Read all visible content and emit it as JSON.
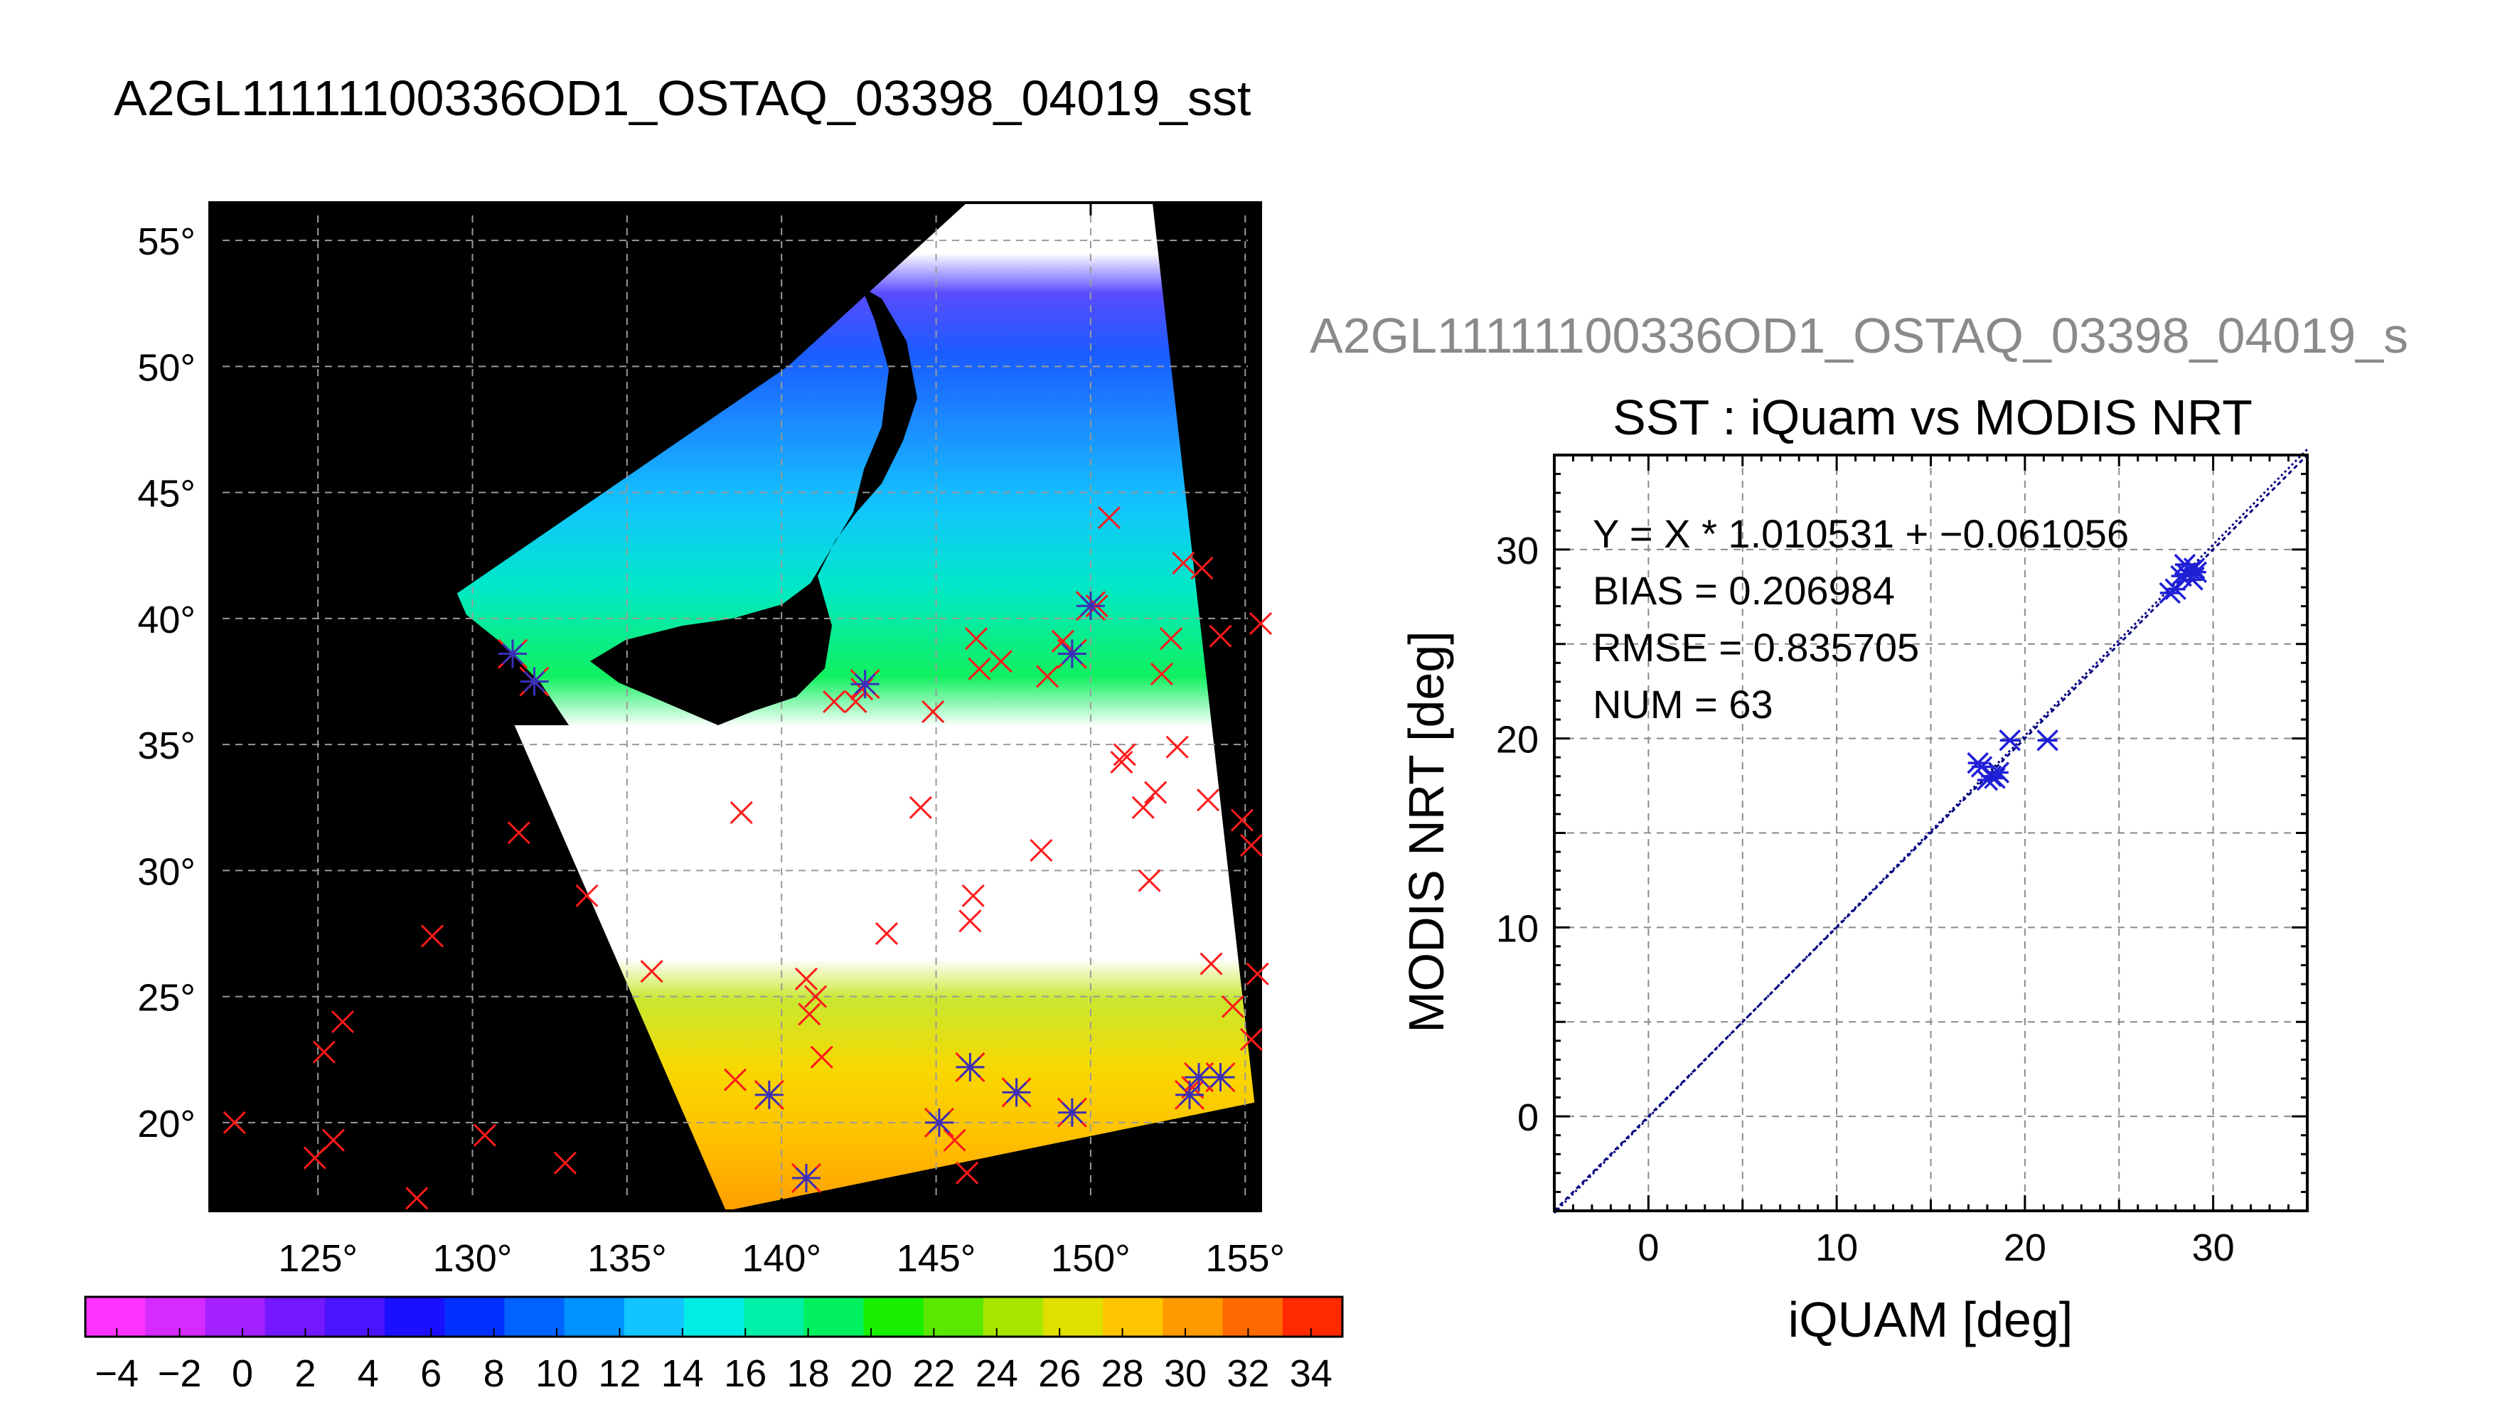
{
  "page_title": "A2GL11111100336OD1_OSTAQ_03398_04019_sst",
  "chart_data": [
    {
      "type": "heatmap",
      "title": "A2GL11111100336OD1_OSTAQ_03398_04019_sst",
      "xlim": [
        121.5,
        155.5
      ],
      "ylim": [
        16.5,
        56.5
      ],
      "x_ticks": [
        "125°",
        "130°",
        "135°",
        "140°",
        "145°",
        "150°",
        "155°"
      ],
      "x_tick_values": [
        125,
        130,
        135,
        140,
        145,
        150,
        155
      ],
      "y_ticks": [
        "20°",
        "25°",
        "30°",
        "35°",
        "40°",
        "45°",
        "50°",
        "55°"
      ],
      "y_tick_values": [
        20,
        25,
        30,
        35,
        40,
        45,
        50,
        55
      ],
      "grid": true,
      "background": "#000000",
      "swath_corners_lonlat": [
        [
          129.5,
          41
        ],
        [
          140.2,
          50
        ],
        [
          146,
          56.5
        ],
        [
          152,
          56.5
        ],
        [
          155.3,
          20.8
        ],
        [
          138.2,
          16.5
        ]
      ],
      "colorbar": {
        "min": -5,
        "max": 35,
        "tick_labels": [
          "−4",
          "−2",
          "0",
          "2",
          "4",
          "6",
          "8",
          "10",
          "12",
          "14",
          "16",
          "18",
          "20",
          "22",
          "24",
          "26",
          "28",
          "30",
          "32",
          "34"
        ],
        "tick_values": [
          -4,
          -2,
          0,
          2,
          4,
          6,
          8,
          10,
          12,
          14,
          16,
          18,
          20,
          22,
          24,
          26,
          28,
          30,
          32,
          34
        ],
        "colors": [
          "#ff33ff",
          "#d62bff",
          "#a520ff",
          "#7419ff",
          "#4a14ff",
          "#1a10ff",
          "#0030ff",
          "#0062ff",
          "#0092ff",
          "#12c4ff",
          "#00ede6",
          "#00f0a8",
          "#00f060",
          "#18f000",
          "#5ae800",
          "#a8e600",
          "#e0e000",
          "#ffc400",
          "#ff9a00",
          "#ff6a00",
          "#ff2a00"
        ]
      },
      "markers_red_x": [
        [
          122.3,
          20
        ],
        [
          124.9,
          18.6
        ],
        [
          125.2,
          22.8
        ],
        [
          125.5,
          19.3
        ],
        [
          125.8,
          24
        ],
        [
          128.2,
          17
        ],
        [
          128.7,
          27.4
        ],
        [
          130.4,
          19.5
        ],
        [
          131.5,
          31.5
        ],
        [
          133,
          18.4
        ],
        [
          133.7,
          29
        ],
        [
          135.8,
          26
        ],
        [
          138.5,
          21.7
        ],
        [
          138.7,
          32.3
        ],
        [
          140.8,
          25.7
        ],
        [
          140.9,
          24.3
        ],
        [
          141.1,
          25
        ],
        [
          141.3,
          22.6
        ],
        [
          141.7,
          36.7
        ],
        [
          142.4,
          36.7
        ],
        [
          142.6,
          37.2
        ],
        [
          143.4,
          27.5
        ],
        [
          144.5,
          32.5
        ],
        [
          144.9,
          36.3
        ],
        [
          145.6,
          19.3
        ],
        [
          146,
          18
        ],
        [
          146.1,
          28
        ],
        [
          146.2,
          29
        ],
        [
          146.3,
          39.2
        ],
        [
          146.4,
          38
        ],
        [
          147.1,
          38.3
        ],
        [
          148.4,
          30.8
        ],
        [
          148.6,
          37.7
        ],
        [
          149.1,
          39.1
        ],
        [
          150.2,
          40.5
        ],
        [
          150.6,
          44
        ],
        [
          151,
          34.3
        ],
        [
          151.1,
          34.6
        ],
        [
          151.7,
          32.5
        ],
        [
          151.9,
          29.6
        ],
        [
          152.1,
          33.1
        ],
        [
          152.3,
          37.8
        ],
        [
          152.8,
          34.9
        ],
        [
          153,
          42.2
        ],
        [
          152.6,
          39.2
        ],
        [
          153.3,
          21.4
        ],
        [
          153.6,
          42
        ],
        [
          153.8,
          32.8
        ],
        [
          153.9,
          26.3
        ],
        [
          154.2,
          39.3
        ],
        [
          154.6,
          24.6
        ],
        [
          154.9,
          32
        ],
        [
          155.2,
          31
        ],
        [
          155.2,
          23.3
        ],
        [
          155.5,
          39.8
        ],
        [
          155.4,
          25.9
        ]
      ],
      "markers_blue_star": [
        [
          131.3,
          38.6
        ],
        [
          132,
          37.5
        ],
        [
          139.6,
          21.1
        ],
        [
          140.8,
          17.8
        ],
        [
          142.7,
          37.4
        ],
        [
          145.1,
          20
        ],
        [
          146.1,
          22.2
        ],
        [
          147.6,
          21.2
        ],
        [
          149.4,
          20.4
        ],
        [
          149.4,
          38.6
        ],
        [
          150,
          40.5
        ],
        [
          153.2,
          21.1
        ],
        [
          153.5,
          21.8
        ],
        [
          154.2,
          21.8
        ]
      ]
    },
    {
      "type": "scatter",
      "title": "SST : iQuam vs MODIS NRT",
      "supertitle": "A2GL11111100336OD1_OSTAQ_03398_04019_s",
      "xlabel": "iQUAM [deg]",
      "ylabel": "MODIS NRT [deg]",
      "xlim": [
        -5,
        35
      ],
      "ylim": [
        -5,
        35
      ],
      "x_ticks": [
        "0",
        "10",
        "20",
        "30"
      ],
      "x_tick_values": [
        0,
        10,
        20,
        30
      ],
      "y_ticks": [
        "0",
        "10",
        "20",
        "30"
      ],
      "y_tick_values": [
        0,
        10,
        20,
        30
      ],
      "grid": true,
      "annotations": [
        "Y = X * 1.010531 + −0.061056",
        "BIAS = 0.206984",
        "RMSE = 0.835705",
        "NUM = 63"
      ],
      "fit": {
        "slope": 1.010531,
        "intercept": -0.061056
      },
      "x": [
        17.5,
        17.7,
        18.0,
        18.2,
        18.4,
        18.6,
        19.2,
        21.2,
        27.7,
        28.0,
        28.3,
        28.6,
        28.8,
        29.0,
        29.1,
        28.9,
        28.5
      ],
      "y": [
        18.7,
        18.5,
        17.8,
        18.0,
        17.9,
        18.2,
        19.9,
        19.9,
        27.7,
        27.9,
        28.6,
        28.7,
        28.9,
        29.0,
        28.8,
        28.4,
        29.2
      ],
      "marker_color": "#1f1fd6",
      "line_color": "#000080"
    }
  ]
}
